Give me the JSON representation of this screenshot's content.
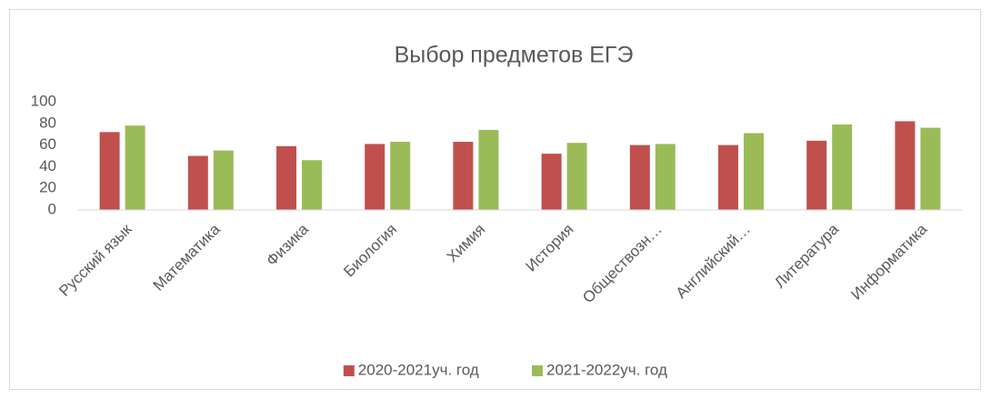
{
  "chart_data": {
    "type": "bar",
    "title": "Выбор предметов  ЕГЭ",
    "categories": [
      "Русский язык",
      "Математика",
      "Физика",
      "Биология",
      "Химия",
      "История",
      "Обществозн…",
      "Английский…",
      "Литература",
      "Информатика"
    ],
    "series": [
      {
        "name": "2020-2021уч. год",
        "color": "#c0504d",
        "values": [
          72,
          50,
          59,
          61,
          63,
          52,
          60,
          60,
          64,
          82
        ]
      },
      {
        "name": "2021-2022уч. год",
        "color": "#9bbb59",
        "values": [
          78,
          55,
          46,
          63,
          74,
          62,
          61,
          71,
          79,
          76
        ]
      }
    ],
    "ylim": [
      0,
      100
    ],
    "yticks": [
      0,
      20,
      40,
      60,
      80,
      100
    ],
    "grid": false,
    "legend": "bottom"
  }
}
